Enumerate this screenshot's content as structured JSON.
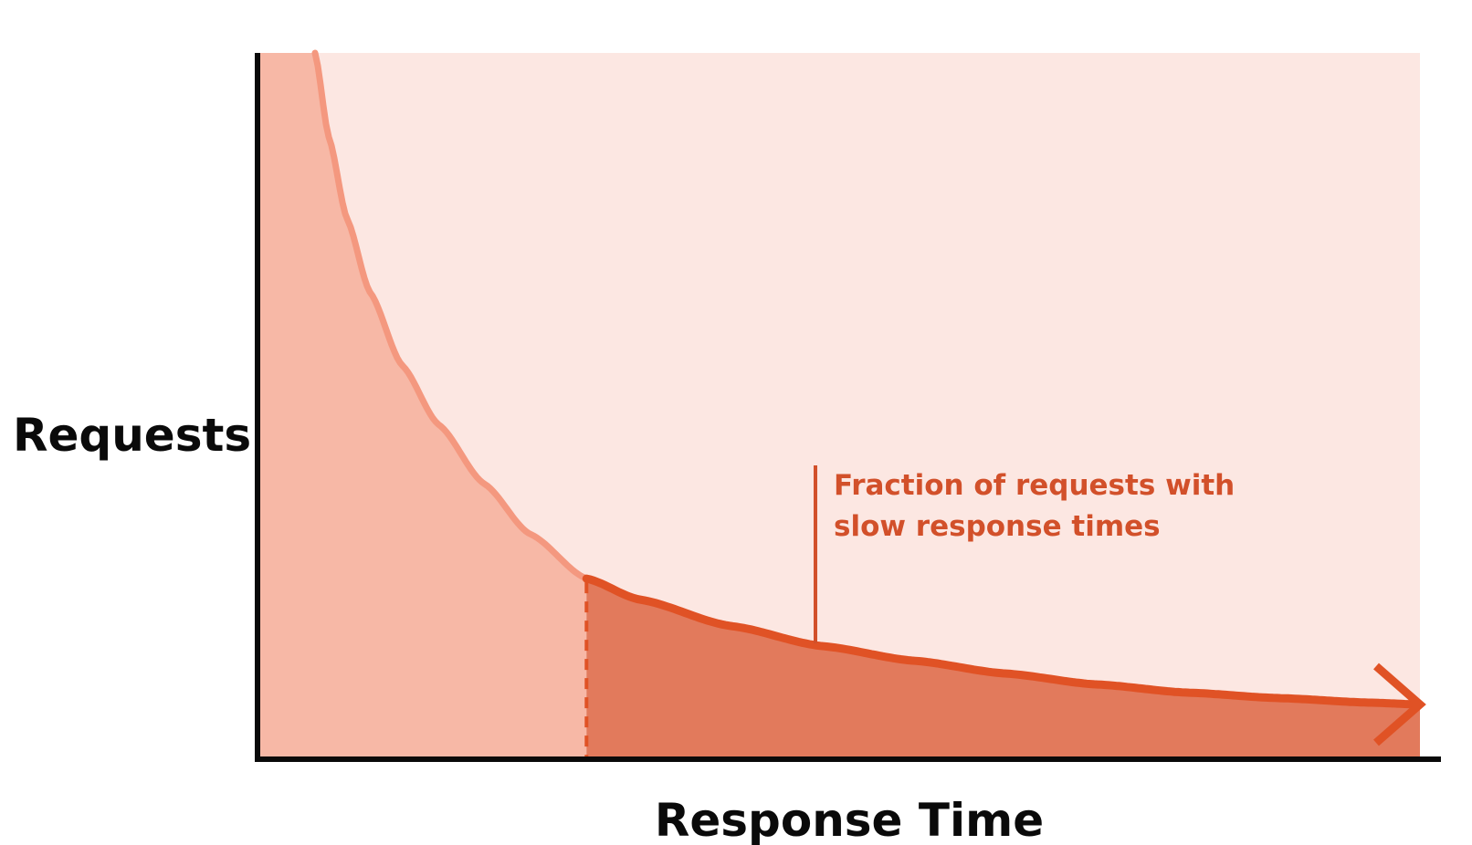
{
  "colors": {
    "plot_background": "#fce7e2",
    "fast_area": "#f7b8a6",
    "slow_area": "#e27a5c",
    "curve_head": "#f4987f",
    "curve_tail": "#e05225",
    "annotation": "#d2502a",
    "axis": "#0a0a0a"
  },
  "chart_data": {
    "type": "area",
    "title": "",
    "xlabel": "Response Time",
    "ylabel": "Requests",
    "grid": false,
    "x_ticks": false,
    "y_ticks": false,
    "curve_shape": "decaying long-tail distribution ending in an arrowhead",
    "regions": [
      {
        "name": "fast",
        "from": 0,
        "to": 0.283,
        "color": "fast_area"
      },
      {
        "name": "slow",
        "from": 0.283,
        "to": 1,
        "color": "slow_area"
      }
    ],
    "threshold_x": 0.283,
    "annotation": {
      "lines": [
        "Fraction of requests with",
        "slow response times"
      ],
      "target_x": 0.48
    }
  }
}
